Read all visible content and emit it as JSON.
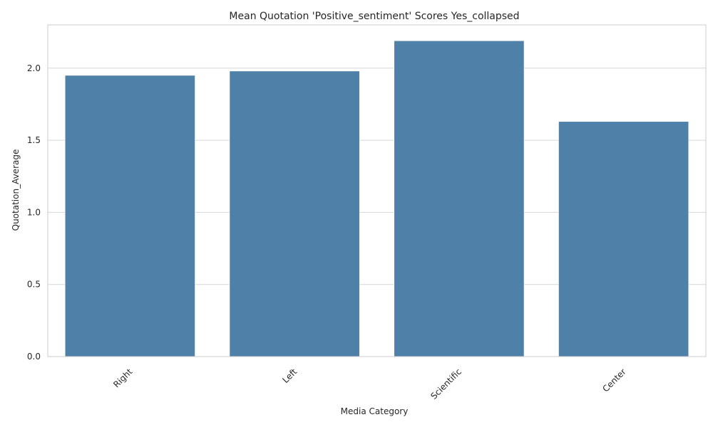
{
  "chart_data": {
    "type": "bar",
    "title": "Mean Quotation 'Positive_sentiment' Scores Yes_collapsed",
    "xlabel": "Media Category",
    "ylabel": "Quotation_Average",
    "categories": [
      "Right",
      "Left",
      "Scientific",
      "Center"
    ],
    "values": [
      1.95,
      1.98,
      2.19,
      1.63
    ],
    "ylim": [
      0,
      2.3
    ],
    "yticks": [
      0.0,
      0.5,
      1.0,
      1.5,
      2.0
    ],
    "ytick_labels": [
      "0.0",
      "0.5",
      "1.0",
      "1.5",
      "2.0"
    ],
    "grid": "horizontal",
    "bar_color": "#4f81a8",
    "grid_color": "#d6d6d6",
    "spine_color": "#cccccc",
    "legend": "none"
  }
}
